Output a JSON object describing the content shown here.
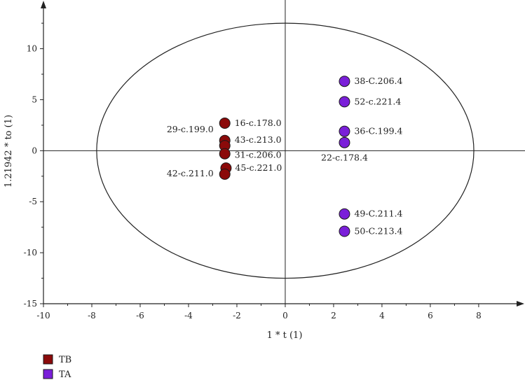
{
  "chart_data": {
    "type": "scatter",
    "title": "",
    "xlabel": "1 * t (1)",
    "ylabel": "1.21942 * to (1)",
    "xlim": [
      -10,
      9.8
    ],
    "ylim": [
      -15,
      14.5
    ],
    "xticks": [
      -10,
      -8,
      -6,
      -4,
      -2,
      0,
      2,
      4,
      6,
      8
    ],
    "yticks": [
      -15,
      -10,
      -5,
      0,
      5,
      10
    ],
    "grid": false,
    "ellipse": {
      "cx": 0,
      "cy": 0,
      "rx": 7.8,
      "ry": 12.5
    },
    "legend_position": "bottom-left",
    "series": [
      {
        "name": "TB",
        "color": "#8b0a0a",
        "points": [
          {
            "label": "16-c.178.0",
            "x": -2.5,
            "y": 2.7
          },
          {
            "label": "29-c.199.0",
            "x": -2.5,
            "y": 1.0
          },
          {
            "label": "43-c.213.0",
            "x": -2.5,
            "y": 0.5
          },
          {
            "label": "31-c.206.0",
            "x": -2.5,
            "y": -0.3
          },
          {
            "label": "45-c.221.0",
            "x": -2.45,
            "y": -1.7
          },
          {
            "label": "42-c.211.0",
            "x": -2.5,
            "y": -2.3
          }
        ]
      },
      {
        "name": "TA",
        "color": "#7a1fd9",
        "points": [
          {
            "label": "38-C.206.4",
            "x": 2.45,
            "y": 6.8
          },
          {
            "label": "52-c.221.4",
            "x": 2.45,
            "y": 4.8
          },
          {
            "label": "36-C.199.4",
            "x": 2.45,
            "y": 1.9
          },
          {
            "label": "22-c.178.4",
            "x": 2.45,
            "y": 0.8
          },
          {
            "label": "49-C.211.4",
            "x": 2.45,
            "y": -6.2
          },
          {
            "label": "50-C.213.4",
            "x": 2.45,
            "y": -7.9
          }
        ]
      }
    ]
  }
}
